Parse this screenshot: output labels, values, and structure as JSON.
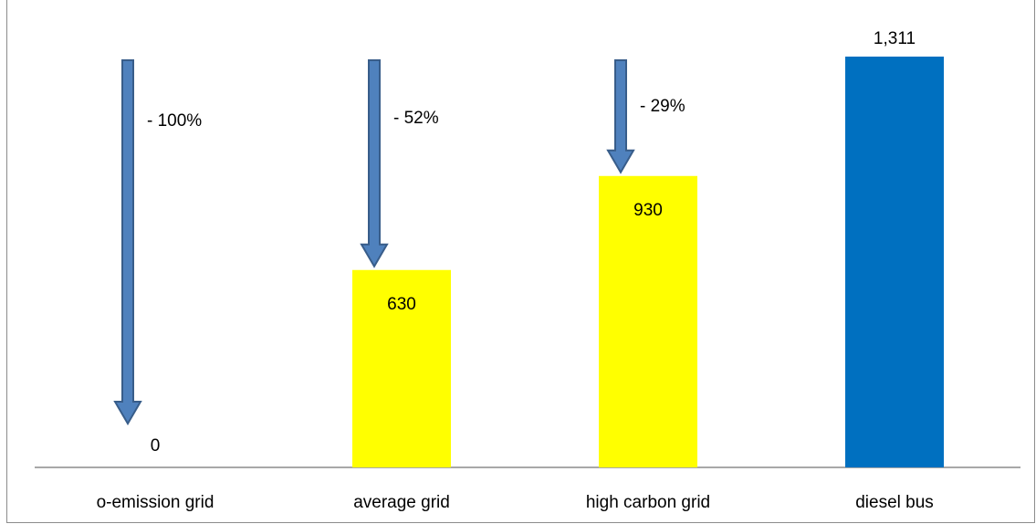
{
  "chart_data": {
    "type": "bar",
    "categories": [
      "o-emission grid",
      "average grid",
      "high carbon grid",
      "diesel bus"
    ],
    "values": [
      0,
      630,
      930,
      1311
    ],
    "value_labels": [
      "0",
      "630",
      "930",
      "1,311"
    ],
    "reductions": [
      "- 100%",
      "- 52%",
      "- 29%",
      ""
    ],
    "ylim": [
      0,
      1311
    ],
    "grid": false,
    "colors": {
      "electric": "#FFFF00",
      "diesel": "#0070C0",
      "arrow_fill": "#4F81BD",
      "arrow_stroke": "#385D8A",
      "axis": "#8C8C8C"
    }
  }
}
